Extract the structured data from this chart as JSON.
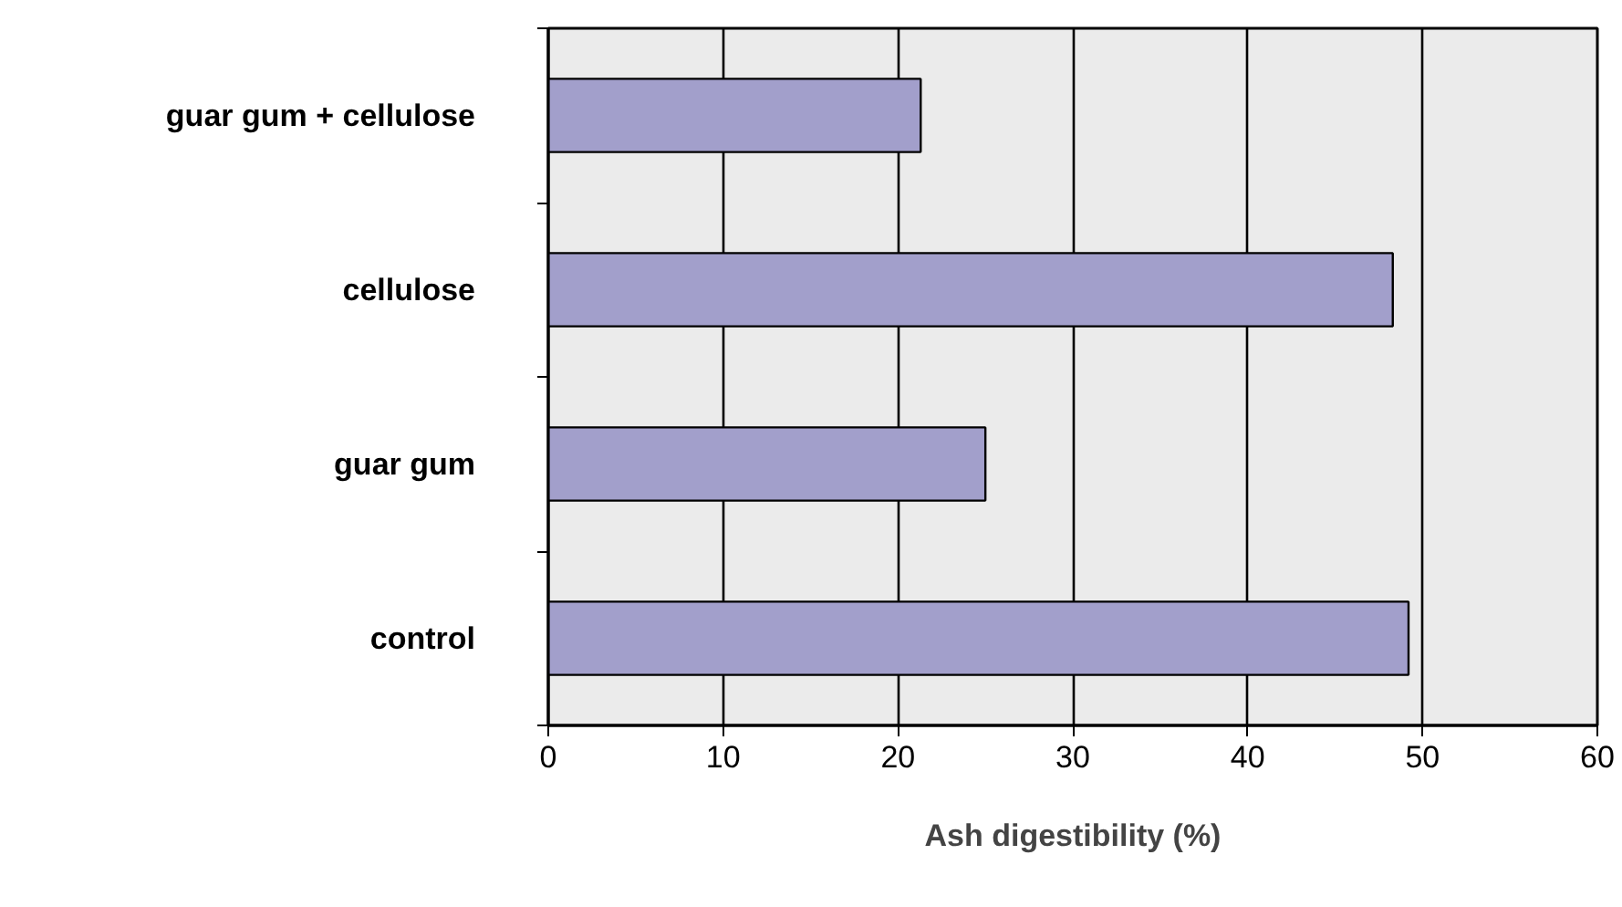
{
  "chart_data": {
    "type": "bar",
    "orientation": "horizontal",
    "xlabel": "Ash digestibility (%)",
    "categories": [
      "guar gum + cellulose",
      "cellulose",
      "guar gum",
      "control"
    ],
    "values": [
      21.3,
      48.3,
      25.0,
      49.2
    ],
    "color": "#a29fcb",
    "xlim": [
      0,
      60
    ],
    "xticks": [
      0,
      10,
      20,
      30,
      40,
      50,
      60
    ],
    "grid": "x"
  }
}
